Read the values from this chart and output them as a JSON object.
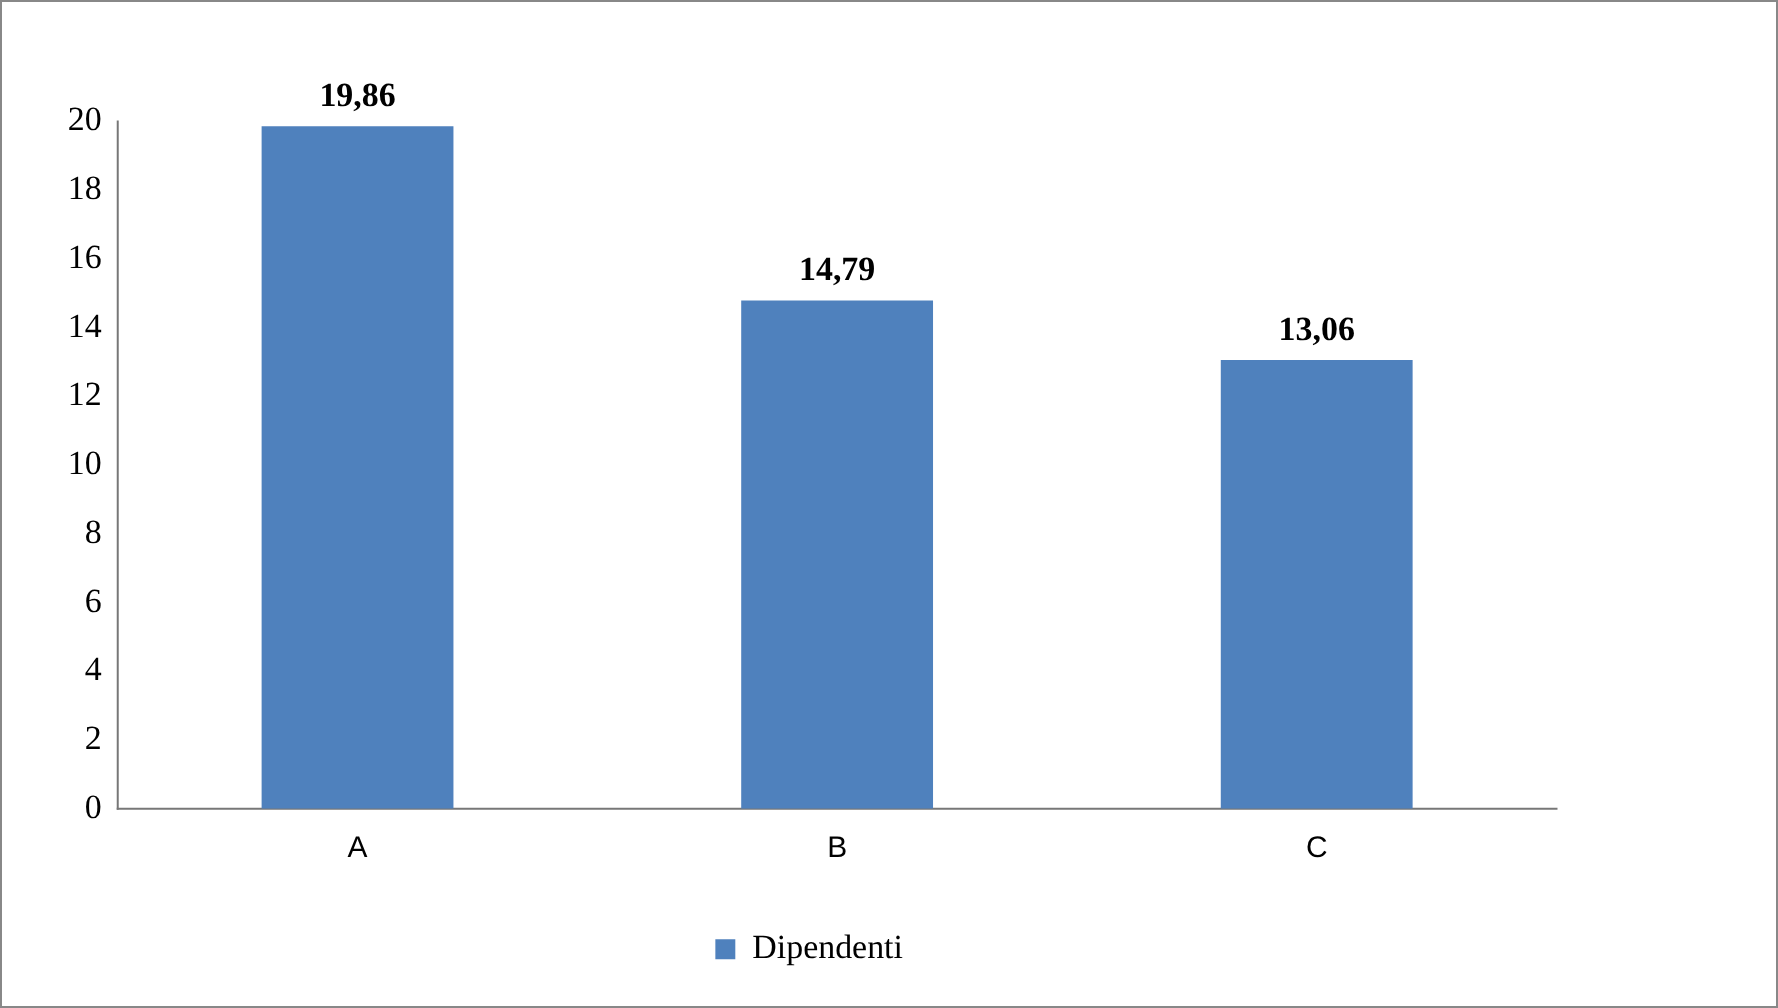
{
  "chart_data": {
    "type": "bar",
    "categories": [
      "A",
      "B",
      "C"
    ],
    "series": [
      {
        "name": "Dipendenti",
        "color": "#4f81bd",
        "values": [
          19.86,
          14.79,
          13.06
        ],
        "value_labels": [
          "19,86",
          "14,79",
          "13,06"
        ]
      }
    ],
    "ylim": [
      0,
      20
    ],
    "yticks": [
      0,
      2,
      4,
      6,
      8,
      10,
      12,
      14,
      16,
      18,
      20
    ],
    "grid": false,
    "legend": "bottom"
  }
}
